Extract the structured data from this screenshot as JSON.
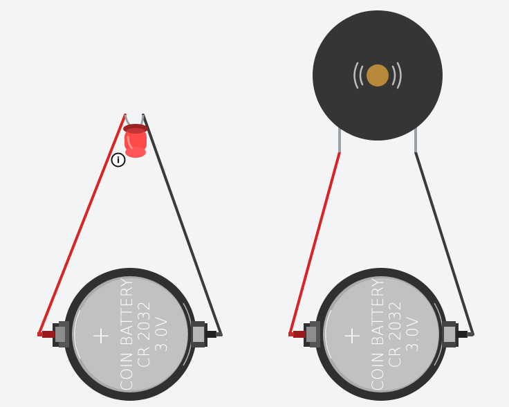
{
  "diagram": {
    "background_color": "#f3f4f6",
    "wire_colors": {
      "positive": "#d92424",
      "negative": "#3a3a3a"
    }
  },
  "circuits": [
    {
      "id": "led-circuit",
      "component": "led",
      "led_color": "#ff4a4a",
      "info_label": "i",
      "battery": {
        "label_line1": "COIN BATTERY",
        "label_line2": "CR 2032",
        "label_line3": "3.0V",
        "plus_symbol": "+"
      }
    },
    {
      "id": "buzzer-circuit",
      "component": "buzzer",
      "buzzer_color": "#353535",
      "buzzer_center_color": "#b8893b",
      "battery": {
        "label_line1": "COIN BATTERY",
        "label_line2": "CR 2032",
        "label_line3": "3.0V",
        "plus_symbol": "+"
      }
    }
  ]
}
